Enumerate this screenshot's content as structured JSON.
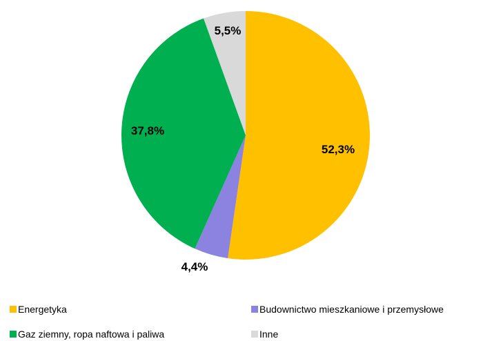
{
  "chart_data": {
    "type": "pie",
    "start_angle_deg": 0,
    "direction": "clockwise",
    "slices": [
      {
        "label": "Energetyka",
        "value": 52.3,
        "display": "52,3%",
        "color": "#FFC000"
      },
      {
        "label": "Budownictwo mieszkaniowe i przemysłowe",
        "value": 4.4,
        "display": "4,4%",
        "color": "#8C82E0"
      },
      {
        "label": "Gaz ziemny, ropa naftowa i paliwa",
        "value": 37.8,
        "display": "37,8%",
        "color": "#00B050"
      },
      {
        "label": "Inne",
        "value": 5.5,
        "display": "5,5%",
        "color": "#D9D9D9"
      }
    ],
    "legend_position": "bottom"
  }
}
